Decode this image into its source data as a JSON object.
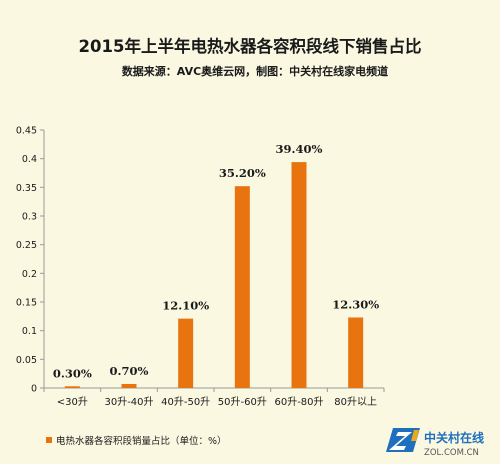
{
  "chart_data": {
    "type": "bar",
    "title": "2015年上半年电热水器各容积段线下销售占比",
    "subtitle": "数据来源：AVC奥维云网，制图：中关村在线家电频道",
    "categories": [
      "<30升",
      "30升-40升",
      "40升-50升",
      "50升-60升",
      "60升-80升",
      "80升以上"
    ],
    "series": [
      {
        "name": "电热水器各容积段销量占比（单位：%）",
        "values": [
          0.003,
          0.007,
          0.121,
          0.352,
          0.394,
          0.123
        ],
        "labels": [
          "0.30%",
          "0.70%",
          "12.10%",
          "35.20%",
          "39.40%",
          "12.30%"
        ]
      }
    ],
    "ylim": [
      0,
      0.45
    ],
    "yticks": [
      "0",
      "0.05",
      "0.1",
      "0.15",
      "0.2",
      "0.25",
      "0.3",
      "0.35",
      "0.4",
      "0.45"
    ],
    "grid": false,
    "legend_position": "bottom-left",
    "colors": {
      "bar": "#e8740f",
      "axis": "#9a9a9a",
      "text": "#1a1a1a",
      "background": "#fbf8e2"
    }
  },
  "watermark": {
    "brand": "中关村在线",
    "url": "ZOL.COM.CN"
  }
}
